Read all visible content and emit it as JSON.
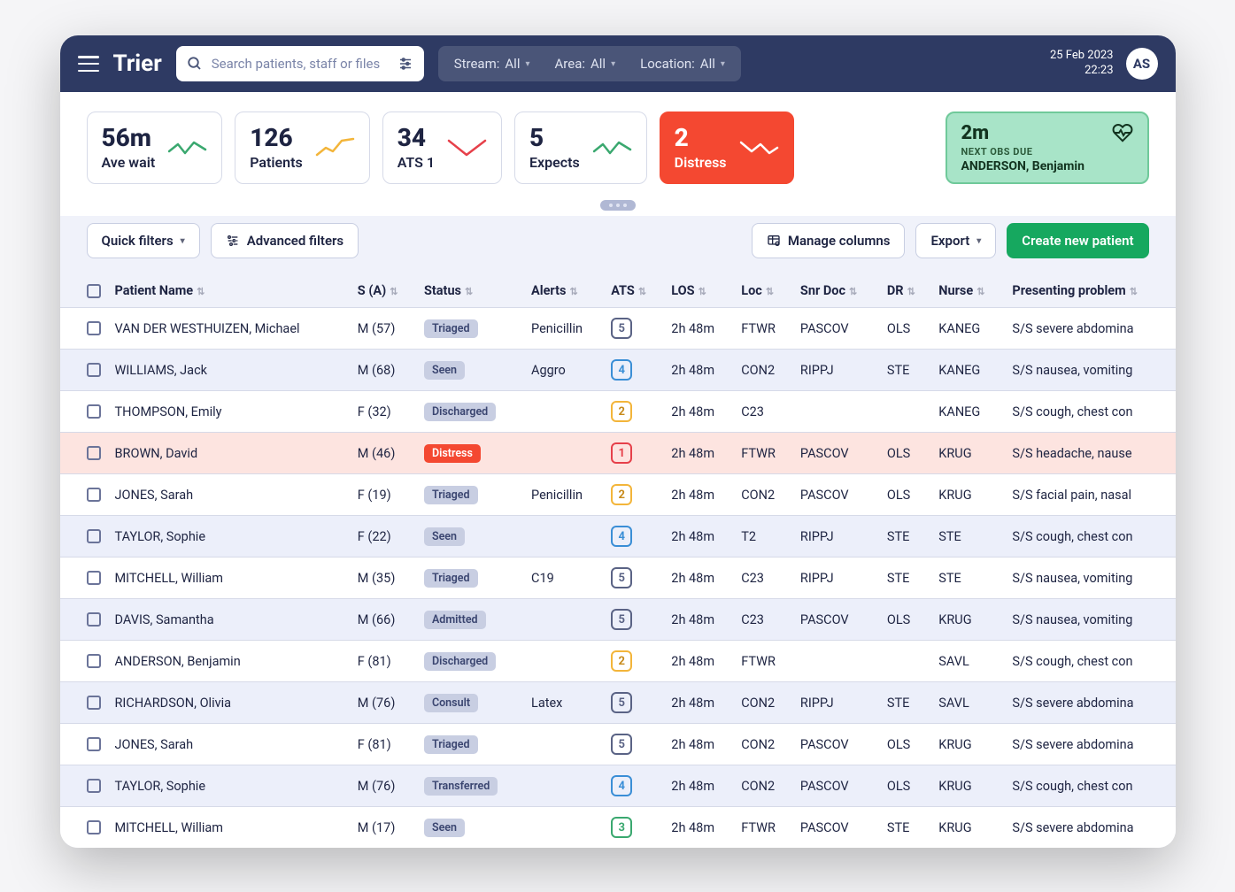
{
  "brand": "Trier",
  "search": {
    "placeholder": "Search patients, staff or files"
  },
  "filters": {
    "stream": {
      "label": "Stream:",
      "value": "All"
    },
    "area": {
      "label": "Area:",
      "value": "All"
    },
    "location": {
      "label": "Location:",
      "value": "All"
    }
  },
  "datetime": {
    "date": "25 Feb 2023",
    "time": "22:23"
  },
  "user_initials": "AS",
  "stats": [
    {
      "value": "56m",
      "label": "Ave wait",
      "spark_color": "#3aa86f",
      "trend": "flat"
    },
    {
      "value": "126",
      "label": "Patients",
      "spark_color": "#f3b53a",
      "trend": "up"
    },
    {
      "value": "34",
      "label": "ATS 1",
      "spark_color": "#e6404a",
      "trend": "v"
    },
    {
      "value": "5",
      "label": "Expects",
      "spark_color": "#3aa86f",
      "trend": "flat"
    },
    {
      "value": "2",
      "label": "Distress",
      "spark_color": "#ffffff",
      "trend": "down",
      "variant": "red"
    }
  ],
  "obs": {
    "value": "2m",
    "sub": "NEXT OBS DUE",
    "name": "ANDERSON, Benjamin"
  },
  "toolbar": {
    "quick_filters": "Quick filters",
    "advanced_filters": "Advanced filters",
    "manage_columns": "Manage columns",
    "export": "Export",
    "create": "Create new patient"
  },
  "columns": [
    "Patient Name",
    "S (A)",
    "Status",
    "Alerts",
    "ATS",
    "LOS",
    "Loc",
    "Snr Doc",
    "DR",
    "Nurse",
    "Presenting problem"
  ],
  "status_styles": {
    "Triaged": "b-triaged",
    "Seen": "b-seen",
    "Discharged": "b-discharged",
    "Distress": "b-distress",
    "Admitted": "b-admitted",
    "Consult": "b-consult",
    "Transferred": "b-transferred"
  },
  "ats_styles": {
    "1": "ats-1",
    "2": "ats-2",
    "3": "ats-3",
    "4": "ats-4",
    "5": "ats-5"
  },
  "colors": {
    "header_bg": "#2e3a63",
    "accent_green": "#16a85f",
    "distress_red": "#f44831",
    "border": "#d6dae8",
    "text": "#1e2442",
    "obs_bg": "#a8e4c8"
  },
  "rows": [
    {
      "name": "VAN DER WESTHUIZEN, Michael",
      "sa": "M (57)",
      "status": "Triaged",
      "alerts": "Penicillin",
      "ats": "5",
      "los": "2h 48m",
      "loc": "FTWR",
      "snr": "PASCOV",
      "dr": "OLS",
      "nurse": "KANEG",
      "pp": "S/S severe abdomina"
    },
    {
      "name": "WILLIAMS, Jack",
      "sa": "M (68)",
      "status": "Seen",
      "alerts": "Aggro",
      "ats": "4",
      "los": "2h 48m",
      "loc": "CON2",
      "snr": "RIPPJ",
      "dr": "STE",
      "nurse": "KANEG",
      "pp": "S/S nausea, vomiting"
    },
    {
      "name": "THOMPSON, Emily",
      "sa": "F (32)",
      "status": "Discharged",
      "alerts": "",
      "ats": "2",
      "los": "2h 48m",
      "loc": "C23",
      "snr": "",
      "dr": "",
      "nurse": "KANEG",
      "pp": "S/S cough, chest con"
    },
    {
      "name": "BROWN, David",
      "sa": "M (46)",
      "status": "Distress",
      "alerts": "",
      "ats": "1",
      "los": "2h 48m",
      "loc": "FTWR",
      "snr": "PASCOV",
      "dr": "OLS",
      "nurse": "KRUG",
      "pp": "S/S headache, nause",
      "distress": true
    },
    {
      "name": "JONES, Sarah",
      "sa": "F (19)",
      "status": "Triaged",
      "alerts": "Penicillin",
      "ats": "2",
      "los": "2h 48m",
      "loc": "CON2",
      "snr": "PASCOV",
      "dr": "OLS",
      "nurse": "KRUG",
      "pp": "S/S facial pain, nasal"
    },
    {
      "name": "TAYLOR, Sophie",
      "sa": "F (22)",
      "status": "Seen",
      "alerts": "",
      "ats": "4",
      "los": "2h 48m",
      "loc": "T2",
      "snr": "RIPPJ",
      "dr": "STE",
      "nurse": "STE",
      "pp": "S/S cough, chest con"
    },
    {
      "name": "MITCHELL, William",
      "sa": "M (35)",
      "status": "Triaged",
      "alerts": "C19",
      "ats": "5",
      "los": "2h 48m",
      "loc": "C23",
      "snr": "RIPPJ",
      "dr": "STE",
      "nurse": "STE",
      "pp": "S/S nausea, vomiting"
    },
    {
      "name": "DAVIS, Samantha",
      "sa": "M (66)",
      "status": "Admitted",
      "alerts": "",
      "ats": "5",
      "los": "2h 48m",
      "loc": "C23",
      "snr": "PASCOV",
      "dr": "OLS",
      "nurse": "KRUG",
      "pp": "S/S nausea, vomiting"
    },
    {
      "name": "ANDERSON, Benjamin",
      "sa": "F (81)",
      "status": "Discharged",
      "alerts": "",
      "ats": "2",
      "los": "2h 48m",
      "loc": "FTWR",
      "snr": "",
      "dr": "",
      "nurse": "SAVL",
      "pp": "S/S cough, chest con"
    },
    {
      "name": "RICHARDSON, Olivia",
      "sa": "M (76)",
      "status": "Consult",
      "alerts": "Latex",
      "ats": "5",
      "los": "2h 48m",
      "loc": "CON2",
      "snr": "RIPPJ",
      "dr": "STE",
      "nurse": "SAVL",
      "pp": "S/S severe abdomina"
    },
    {
      "name": "JONES, Sarah",
      "sa": "F (81)",
      "status": "Triaged",
      "alerts": "",
      "ats": "5",
      "los": "2h 48m",
      "loc": "CON2",
      "snr": "PASCOV",
      "dr": "OLS",
      "nurse": "KRUG",
      "pp": "S/S severe abdomina"
    },
    {
      "name": "TAYLOR, Sophie",
      "sa": "M (76)",
      "status": "Transferred",
      "alerts": "",
      "ats": "4",
      "los": "2h 48m",
      "loc": "CON2",
      "snr": "PASCOV",
      "dr": "OLS",
      "nurse": "KRUG",
      "pp": "S/S cough, chest con"
    },
    {
      "name": "MITCHELL, William",
      "sa": "M (17)",
      "status": "Seen",
      "alerts": "",
      "ats": "3",
      "los": "2h 48m",
      "loc": "FTWR",
      "snr": "PASCOV",
      "dr": "STE",
      "nurse": "KRUG",
      "pp": "S/S severe abdomina"
    }
  ]
}
